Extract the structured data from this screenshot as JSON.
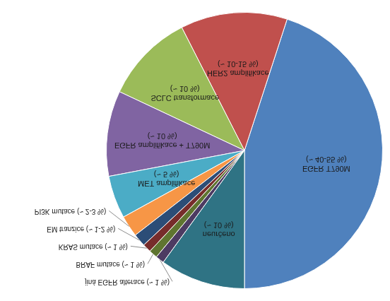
{
  "chart_data": {
    "type": "pie",
    "categories": [
      "EGFR T790M (~ 40-55 %)",
      "HER2 amplifikace (~ 10-15 %)",
      "SCLC transformace (~ 10 %)",
      "EGFR amplifikace + T790M (~ 10 %)",
      "MET amplifikace (~ 5 %)",
      "PI3K mutace (~ 2-3 %)",
      "EM tranzice (~ 1-2 %)",
      "KRAS mutace (~ 1 %)",
      "BRAF mutace (~ 1 %)",
      "jiná EGFR alterace (~ 1 %)",
      "neurčeno (~ 10 %)"
    ],
    "values": [
      45,
      12.5,
      10.5,
      10,
      5,
      2.5,
      1.5,
      1,
      1,
      1,
      10
    ],
    "colors": [
      "#4f81bd",
      "#c0504d",
      "#9bbb59",
      "#8064a2",
      "#4bacc6",
      "#f79646",
      "#2c4d77",
      "#772c2b",
      "#5f7530",
      "#4d3b62",
      "#2f7384"
    ]
  }
}
